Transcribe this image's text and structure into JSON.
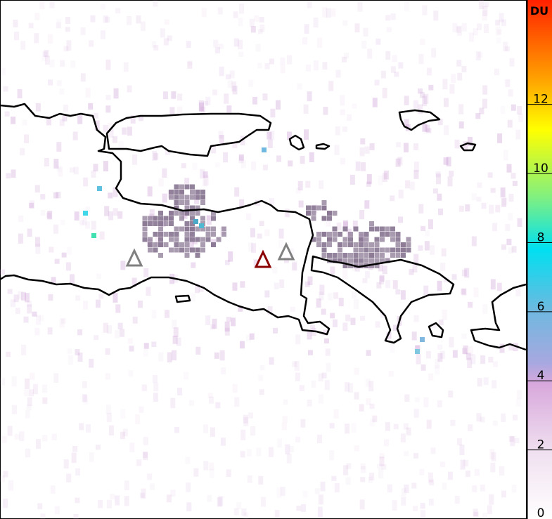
{
  "colorbar": {
    "unit": "DU",
    "ticks": [
      {
        "value": 0,
        "label": "0"
      },
      {
        "value": 2,
        "label": "2"
      },
      {
        "value": 4,
        "label": "4"
      },
      {
        "value": 6,
        "label": "6"
      },
      {
        "value": 8,
        "label": "8"
      },
      {
        "value": 10,
        "label": "10"
      },
      {
        "value": 12,
        "label": "12"
      }
    ],
    "range": [
      0,
      15
    ],
    "colors": [
      "#ffffff",
      "#f0e0f0",
      "#d8a8dc",
      "#a8a8e0",
      "#70b8e0",
      "#00e0f0",
      "#80f080",
      "#ffff00",
      "#ffa000",
      "#ff2000"
    ]
  },
  "markers": [
    {
      "name": "volcano-marker",
      "color": "#808080"
    },
    {
      "name": "volcano-marker-active",
      "color": "#8b0000"
    },
    {
      "name": "volcano-marker",
      "color": "#808080"
    }
  ],
  "colors": {
    "coastline": "#000000",
    "flagged_pixels": "#8c7a96"
  }
}
